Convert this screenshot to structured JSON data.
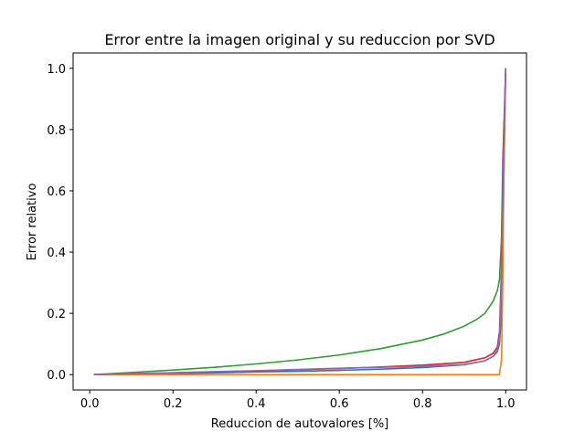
{
  "chart_data": {
    "type": "line",
    "title": "Error entre la imagen original y su reduccion por SVD",
    "xlabel": "Reduccion de autovalores [%]",
    "ylabel": "Error relativo",
    "xlim": [
      -0.04,
      1.05
    ],
    "ylim": [
      -0.05,
      1.05
    ],
    "xticks": [
      0.0,
      0.2,
      0.4,
      0.6,
      0.8,
      1.0
    ],
    "xtick_labels": [
      "0.0",
      "0.2",
      "0.4",
      "0.6",
      "0.8",
      "1.0"
    ],
    "yticks": [
      0.0,
      0.2,
      0.4,
      0.6,
      0.8,
      1.0
    ],
    "ytick_labels": [
      "0.0",
      "0.2",
      "0.4",
      "0.6",
      "0.8",
      "1.0"
    ],
    "grid": false,
    "legend": "none",
    "series": [
      {
        "color": "#1f77b4",
        "points": [
          [
            0.01,
            0.0
          ],
          [
            0.1,
            0.002
          ],
          [
            0.2,
            0.004
          ],
          [
            0.3,
            0.006
          ],
          [
            0.4,
            0.009
          ],
          [
            0.5,
            0.011
          ],
          [
            0.6,
            0.014
          ],
          [
            0.7,
            0.018
          ],
          [
            0.8,
            0.023
          ],
          [
            0.9,
            0.032
          ],
          [
            0.95,
            0.045
          ],
          [
            0.97,
            0.06
          ],
          [
            0.98,
            0.075
          ],
          [
            0.985,
            0.1
          ],
          [
            0.99,
            0.2
          ],
          [
            0.995,
            0.6
          ],
          [
            1.0,
            1.0
          ]
        ]
      },
      {
        "color": "#ff7f0e",
        "points": [
          [
            0.01,
            0.0
          ],
          [
            0.2,
            0.0
          ],
          [
            0.4,
            0.0
          ],
          [
            0.6,
            0.0
          ],
          [
            0.8,
            0.0
          ],
          [
            0.9,
            0.0
          ],
          [
            0.985,
            0.0
          ],
          [
            0.99,
            0.05
          ],
          [
            0.993,
            0.3
          ],
          [
            0.996,
            0.7
          ],
          [
            1.0,
            1.0
          ]
        ]
      },
      {
        "color": "#2ca02c",
        "points": [
          [
            0.01,
            0.0
          ],
          [
            0.1,
            0.007
          ],
          [
            0.2,
            0.015
          ],
          [
            0.3,
            0.024
          ],
          [
            0.4,
            0.035
          ],
          [
            0.5,
            0.048
          ],
          [
            0.6,
            0.064
          ],
          [
            0.7,
            0.085
          ],
          [
            0.8,
            0.113
          ],
          [
            0.85,
            0.132
          ],
          [
            0.9,
            0.158
          ],
          [
            0.93,
            0.18
          ],
          [
            0.95,
            0.2
          ],
          [
            0.97,
            0.24
          ],
          [
            0.98,
            0.275
          ],
          [
            0.985,
            0.31
          ],
          [
            0.99,
            0.45
          ],
          [
            0.993,
            0.7
          ],
          [
            1.0,
            1.0
          ]
        ]
      },
      {
        "color": "#d62728",
        "points": [
          [
            0.01,
            0.0
          ],
          [
            0.1,
            0.003
          ],
          [
            0.2,
            0.006
          ],
          [
            0.3,
            0.009
          ],
          [
            0.4,
            0.012
          ],
          [
            0.5,
            0.016
          ],
          [
            0.6,
            0.02
          ],
          [
            0.7,
            0.025
          ],
          [
            0.8,
            0.031
          ],
          [
            0.9,
            0.04
          ],
          [
            0.95,
            0.055
          ],
          [
            0.97,
            0.07
          ],
          [
            0.98,
            0.09
          ],
          [
            0.985,
            0.14
          ],
          [
            0.99,
            0.35
          ],
          [
            0.995,
            0.75
          ],
          [
            1.0,
            1.0
          ]
        ]
      },
      {
        "color": "#9467bd",
        "points": [
          [
            0.01,
            0.0
          ],
          [
            0.1,
            0.003
          ],
          [
            0.2,
            0.006
          ],
          [
            0.3,
            0.01
          ],
          [
            0.4,
            0.013
          ],
          [
            0.5,
            0.017
          ],
          [
            0.6,
            0.021
          ],
          [
            0.7,
            0.024
          ],
          [
            0.8,
            0.027
          ],
          [
            0.9,
            0.033
          ],
          [
            0.95,
            0.045
          ],
          [
            0.97,
            0.06
          ],
          [
            0.98,
            0.08
          ],
          [
            0.985,
            0.12
          ],
          [
            0.99,
            0.3
          ],
          [
            0.995,
            0.7
          ],
          [
            1.0,
            1.0
          ]
        ]
      }
    ]
  }
}
